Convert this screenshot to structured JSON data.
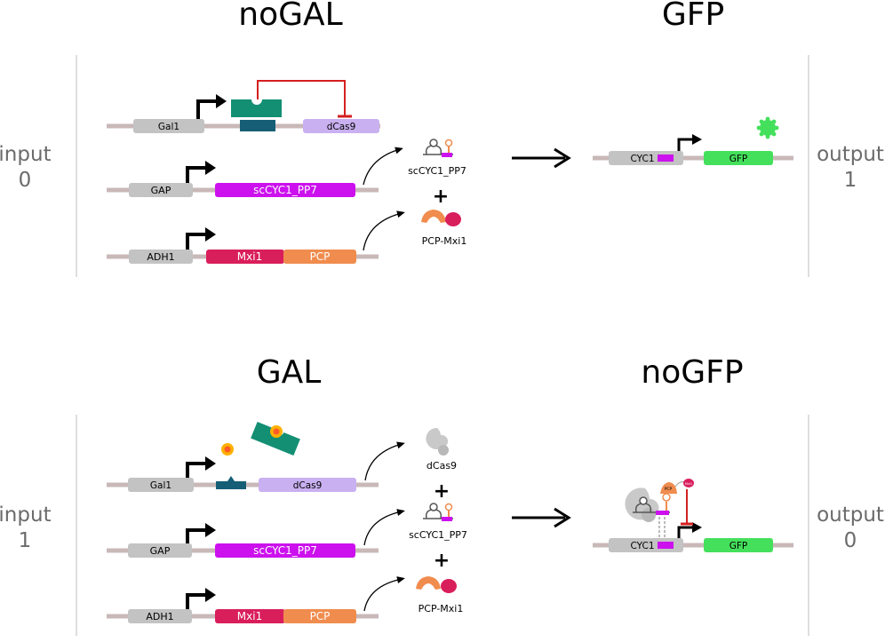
{
  "panel_top": {
    "input_title": "noGAL",
    "output_title": "GFP",
    "input_label": [
      "input",
      "0"
    ],
    "output_label": [
      "output",
      "1"
    ],
    "genes": {
      "gal1": "Gal1",
      "dcas9": "dCas9",
      "gap": "GAP",
      "sccyc1_pp7": "scCYC1_PP7",
      "adh1": "ADH1",
      "mxi1": "Mxi1",
      "pcp": "PCP"
    },
    "products": {
      "rna": "scCYC1_PP7",
      "protein": "PCP-Mxi1"
    },
    "plus": "+",
    "reporter": {
      "cyc1": "CYC1",
      "gfp": "GFP"
    }
  },
  "panel_bottom": {
    "input_title": "GAL",
    "output_title": "noGFP",
    "input_label": [
      "input",
      "1"
    ],
    "output_label": [
      "output",
      "0"
    ],
    "genes": {
      "gal1": "Gal1",
      "dcas9": "dCas9",
      "gap": "GAP",
      "sccyc1_pp7": "scCYC1_PP7",
      "adh1": "ADH1",
      "mxi1": "Mxi1",
      "pcp": "PCP"
    },
    "products": {
      "dcas9": "dCas9",
      "rna": "scCYC1_PP7",
      "protein": "PCP-Mxi1"
    },
    "plus1": "+",
    "plus2": "+",
    "reporter": {
      "cyc1": "CYC1",
      "gfp": "GFP",
      "pcp_tag": "PCP",
      "mxi_tag": "Mxi1"
    }
  },
  "colors": {
    "backbone": "#c9b8b8",
    "promoter": "#c3c3c3",
    "gal4": "#138f73",
    "operator": "#155e76",
    "dcas9": "#c9b0f0",
    "sccyc1": "#cc11ee",
    "mxi1": "#d91e5c",
    "pcp": "#f08c4e",
    "gfp": "#44e05c",
    "repression": "#d42020",
    "galactose": "#ffb000"
  }
}
